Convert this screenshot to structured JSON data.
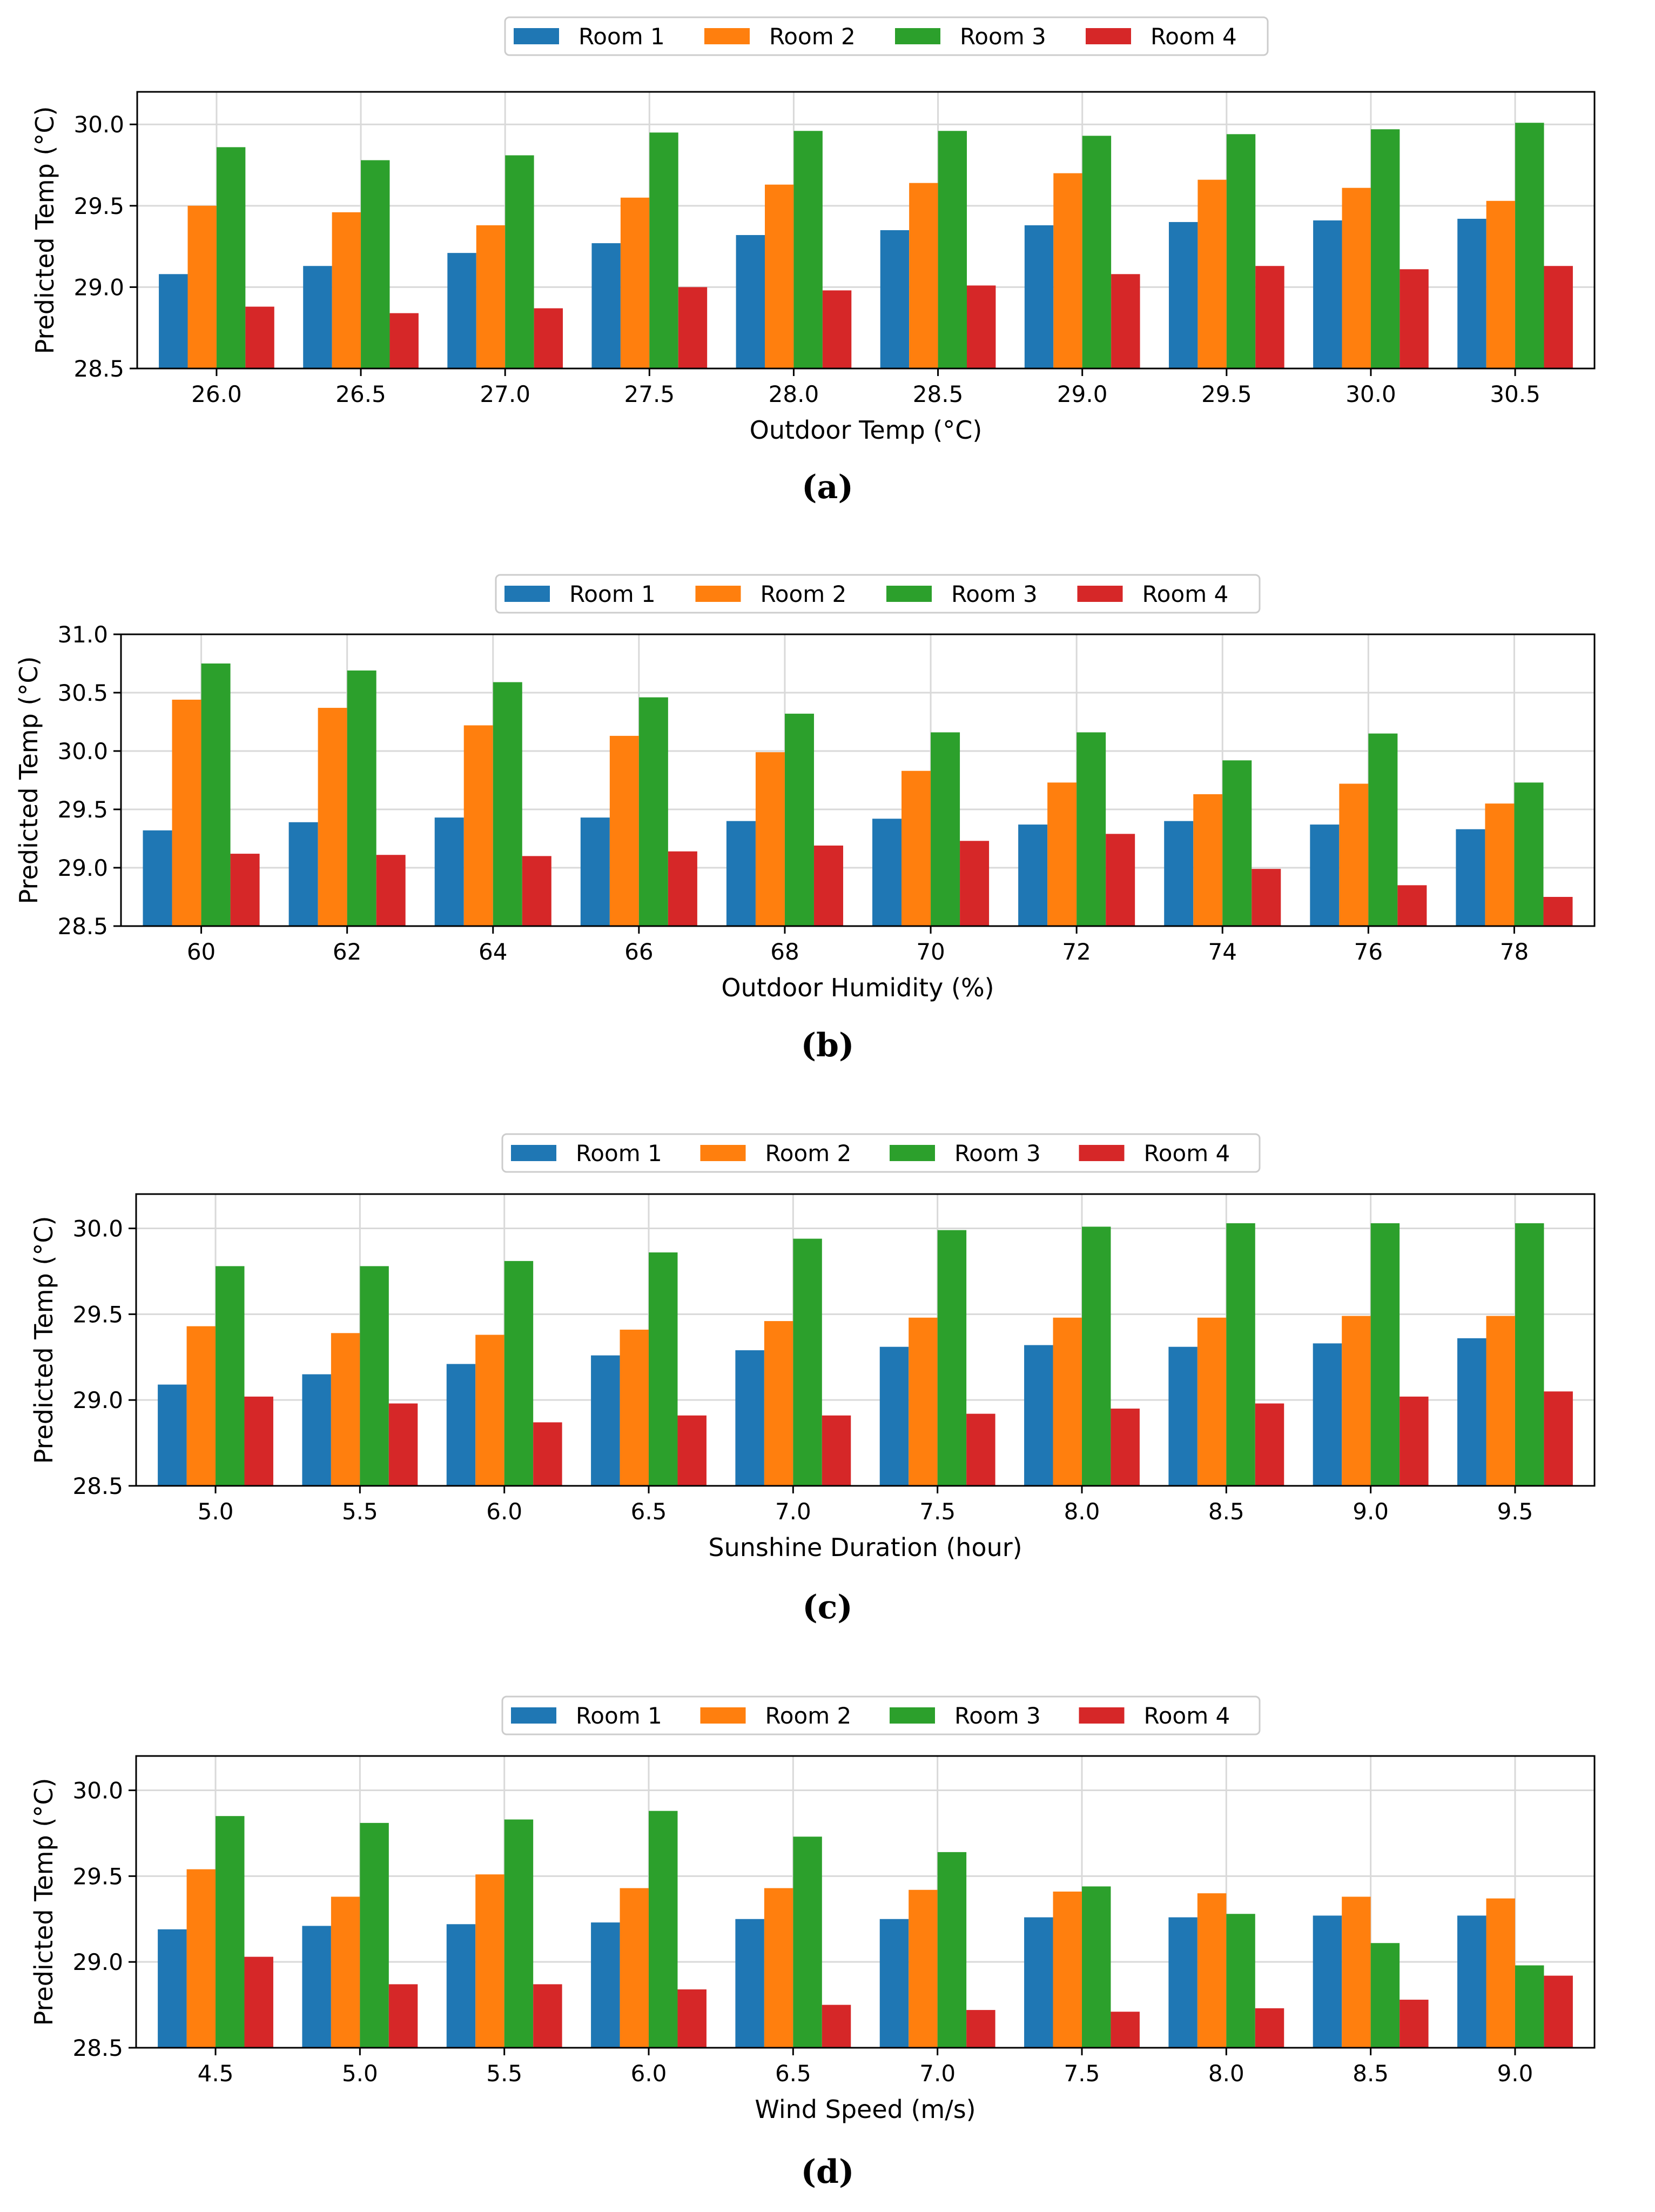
{
  "series_colors": [
    "#1f77b4",
    "#ff7f0e",
    "#2ca02c",
    "#d62728"
  ],
  "chart_data": [
    {
      "type": "bar",
      "panel_label": "(a)",
      "title": "",
      "xlabel": "Outdoor Temp (°C)",
      "ylabel": "Predicted Temp (°C)",
      "ylim": [
        28.5,
        30.2
      ],
      "yticks": [
        "28.5",
        "29.0",
        "29.5",
        "30.0"
      ],
      "grid": true,
      "legend": "top-center",
      "categories": [
        "26.0",
        "26.5",
        "27.0",
        "27.5",
        "28.0",
        "28.5",
        "29.0",
        "29.5",
        "30.0",
        "30.5"
      ],
      "series": [
        {
          "name": "Room 1",
          "values": [
            29.08,
            29.13,
            29.21,
            29.27,
            29.32,
            29.35,
            29.38,
            29.4,
            29.41,
            29.42
          ]
        },
        {
          "name": "Room 2",
          "values": [
            29.5,
            29.46,
            29.38,
            29.55,
            29.63,
            29.64,
            29.7,
            29.66,
            29.61,
            29.53
          ]
        },
        {
          "name": "Room 3",
          "values": [
            29.86,
            29.78,
            29.81,
            29.95,
            29.96,
            29.96,
            29.93,
            29.94,
            29.97,
            30.01
          ]
        },
        {
          "name": "Room 4",
          "values": [
            28.88,
            28.84,
            28.87,
            29.0,
            28.98,
            29.01,
            29.08,
            29.13,
            29.11,
            29.13
          ]
        }
      ]
    },
    {
      "type": "bar",
      "panel_label": "(b)",
      "title": "",
      "xlabel": "Outdoor Humidity (%)",
      "ylabel": "Predicted Temp (°C)",
      "ylim": [
        28.5,
        31.0
      ],
      "yticks": [
        "28.5",
        "29.0",
        "29.5",
        "30.0",
        "30.5",
        "31.0"
      ],
      "grid": true,
      "legend": "top-center",
      "categories": [
        "60",
        "62",
        "64",
        "66",
        "68",
        "70",
        "72",
        "74",
        "76",
        "78"
      ],
      "series": [
        {
          "name": "Room 1",
          "values": [
            29.32,
            29.39,
            29.43,
            29.43,
            29.4,
            29.42,
            29.37,
            29.4,
            29.37,
            29.33
          ]
        },
        {
          "name": "Room 2",
          "values": [
            30.44,
            30.37,
            30.22,
            30.13,
            29.99,
            29.83,
            29.73,
            29.63,
            29.72,
            29.55
          ]
        },
        {
          "name": "Room 3",
          "values": [
            30.75,
            30.69,
            30.59,
            30.46,
            30.32,
            30.16,
            30.16,
            29.92,
            30.15,
            29.73
          ]
        },
        {
          "name": "Room 4",
          "values": [
            29.12,
            29.11,
            29.1,
            29.14,
            29.19,
            29.23,
            29.29,
            28.99,
            28.85,
            28.75
          ]
        }
      ]
    },
    {
      "type": "bar",
      "panel_label": "(c)",
      "title": "",
      "xlabel": "Sunshine Duration (hour)",
      "ylabel": "Predicted Temp (°C)",
      "ylim": [
        28.5,
        30.2
      ],
      "yticks": [
        "28.5",
        "29.0",
        "29.5",
        "30.0"
      ],
      "grid": true,
      "legend": "top-center",
      "categories": [
        "5.0",
        "5.5",
        "6.0",
        "6.5",
        "7.0",
        "7.5",
        "8.0",
        "8.5",
        "9.0",
        "9.5"
      ],
      "series": [
        {
          "name": "Room 1",
          "values": [
            29.09,
            29.15,
            29.21,
            29.26,
            29.29,
            29.31,
            29.32,
            29.31,
            29.33,
            29.36
          ]
        },
        {
          "name": "Room 2",
          "values": [
            29.43,
            29.39,
            29.38,
            29.41,
            29.46,
            29.48,
            29.48,
            29.48,
            29.49,
            29.49
          ]
        },
        {
          "name": "Room 3",
          "values": [
            29.78,
            29.78,
            29.81,
            29.86,
            29.94,
            29.99,
            30.01,
            30.03,
            30.03,
            30.03
          ]
        },
        {
          "name": "Room 4",
          "values": [
            29.02,
            28.98,
            28.87,
            28.91,
            28.91,
            28.92,
            28.95,
            28.98,
            29.02,
            29.05
          ]
        }
      ]
    },
    {
      "type": "bar",
      "panel_label": "(d)",
      "title": "",
      "xlabel": "Wind Speed (m/s)",
      "ylabel": "Predicted Temp (°C)",
      "ylim": [
        28.5,
        30.2
      ],
      "yticks": [
        "28.5",
        "29.0",
        "29.5",
        "30.0"
      ],
      "grid": true,
      "legend": "top-center",
      "categories": [
        "4.5",
        "5.0",
        "5.5",
        "6.0",
        "6.5",
        "7.0",
        "7.5",
        "8.0",
        "8.5",
        "9.0"
      ],
      "series": [
        {
          "name": "Room 1",
          "values": [
            29.19,
            29.21,
            29.22,
            29.23,
            29.25,
            29.25,
            29.26,
            29.26,
            29.27,
            29.27
          ]
        },
        {
          "name": "Room 2",
          "values": [
            29.54,
            29.38,
            29.51,
            29.43,
            29.43,
            29.42,
            29.41,
            29.4,
            29.38,
            29.37
          ]
        },
        {
          "name": "Room 3",
          "values": [
            29.85,
            29.81,
            29.83,
            29.88,
            29.73,
            29.64,
            29.44,
            29.28,
            29.11,
            28.98
          ]
        },
        {
          "name": "Room 4",
          "values": [
            29.03,
            28.87,
            28.87,
            28.84,
            28.75,
            28.72,
            28.71,
            28.73,
            28.78,
            28.92
          ]
        }
      ]
    }
  ]
}
